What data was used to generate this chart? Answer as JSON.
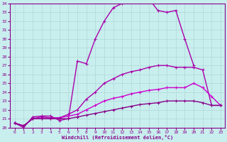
{
  "xlabel": "Windchill (Refroidissement éolien,°C)",
  "xlim": [
    -0.5,
    23.5
  ],
  "ylim": [
    20,
    34
  ],
  "yticks": [
    20,
    21,
    22,
    23,
    24,
    25,
    26,
    27,
    28,
    29,
    30,
    31,
    32,
    33,
    34
  ],
  "xticks": [
    0,
    1,
    2,
    3,
    4,
    5,
    6,
    7,
    8,
    9,
    10,
    11,
    12,
    13,
    14,
    15,
    16,
    17,
    18,
    19,
    20,
    21,
    22,
    23
  ],
  "background_color": "#c8eeee",
  "grid_color": "#b0d8d8",
  "series": [
    {
      "x": [
        0,
        1,
        2,
        3,
        4,
        5,
        6,
        7,
        8,
        9,
        10,
        11,
        12,
        13,
        14,
        15,
        16,
        17,
        18,
        19,
        20
      ],
      "y": [
        20.5,
        20.0,
        21.2,
        21.3,
        21.3,
        20.8,
        21.0,
        27.5,
        27.2,
        30.0,
        32.0,
        33.5,
        34.0,
        34.8,
        34.2,
        34.5,
        33.2,
        33.0,
        33.2,
        30.0,
        27.0
      ],
      "color": "#aa00aa",
      "lw": 1.0
    },
    {
      "x": [
        0,
        1,
        2,
        3,
        4,
        5,
        6,
        7,
        8,
        9,
        10,
        11,
        12,
        13,
        14,
        15,
        16,
        17,
        18,
        19,
        20,
        21,
        22,
        23
      ],
      "y": [
        20.5,
        20.2,
        21.0,
        21.2,
        21.1,
        21.1,
        21.5,
        22.0,
        23.2,
        24.0,
        25.0,
        25.5,
        26.0,
        26.3,
        26.5,
        26.8,
        27.0,
        27.0,
        26.8,
        26.8,
        26.8,
        26.5,
        22.5,
        22.5
      ],
      "color": "#aa00aa",
      "lw": 1.0
    },
    {
      "x": [
        0,
        1,
        2,
        3,
        4,
        5,
        6,
        7,
        8,
        9,
        10,
        11,
        12,
        13,
        14,
        15,
        16,
        17,
        18,
        19,
        20,
        21,
        22,
        23
      ],
      "y": [
        20.5,
        20.2,
        21.0,
        21.0,
        21.0,
        21.1,
        21.3,
        21.5,
        22.0,
        22.5,
        23.0,
        23.3,
        23.5,
        23.8,
        24.0,
        24.2,
        24.3,
        24.5,
        24.5,
        24.5,
        25.0,
        24.5,
        23.5,
        22.5
      ],
      "color": "#cc00cc",
      "lw": 1.0
    },
    {
      "x": [
        0,
        1,
        2,
        3,
        4,
        5,
        6,
        7,
        8,
        9,
        10,
        11,
        12,
        13,
        14,
        15,
        16,
        17,
        18,
        19,
        20,
        21,
        22,
        23
      ],
      "y": [
        20.5,
        20.2,
        21.0,
        21.0,
        21.0,
        21.0,
        21.0,
        21.2,
        21.4,
        21.6,
        21.8,
        22.0,
        22.2,
        22.4,
        22.6,
        22.7,
        22.8,
        23.0,
        23.0,
        23.0,
        23.0,
        22.8,
        22.5,
        22.5
      ],
      "color": "#880088",
      "lw": 1.0
    }
  ]
}
